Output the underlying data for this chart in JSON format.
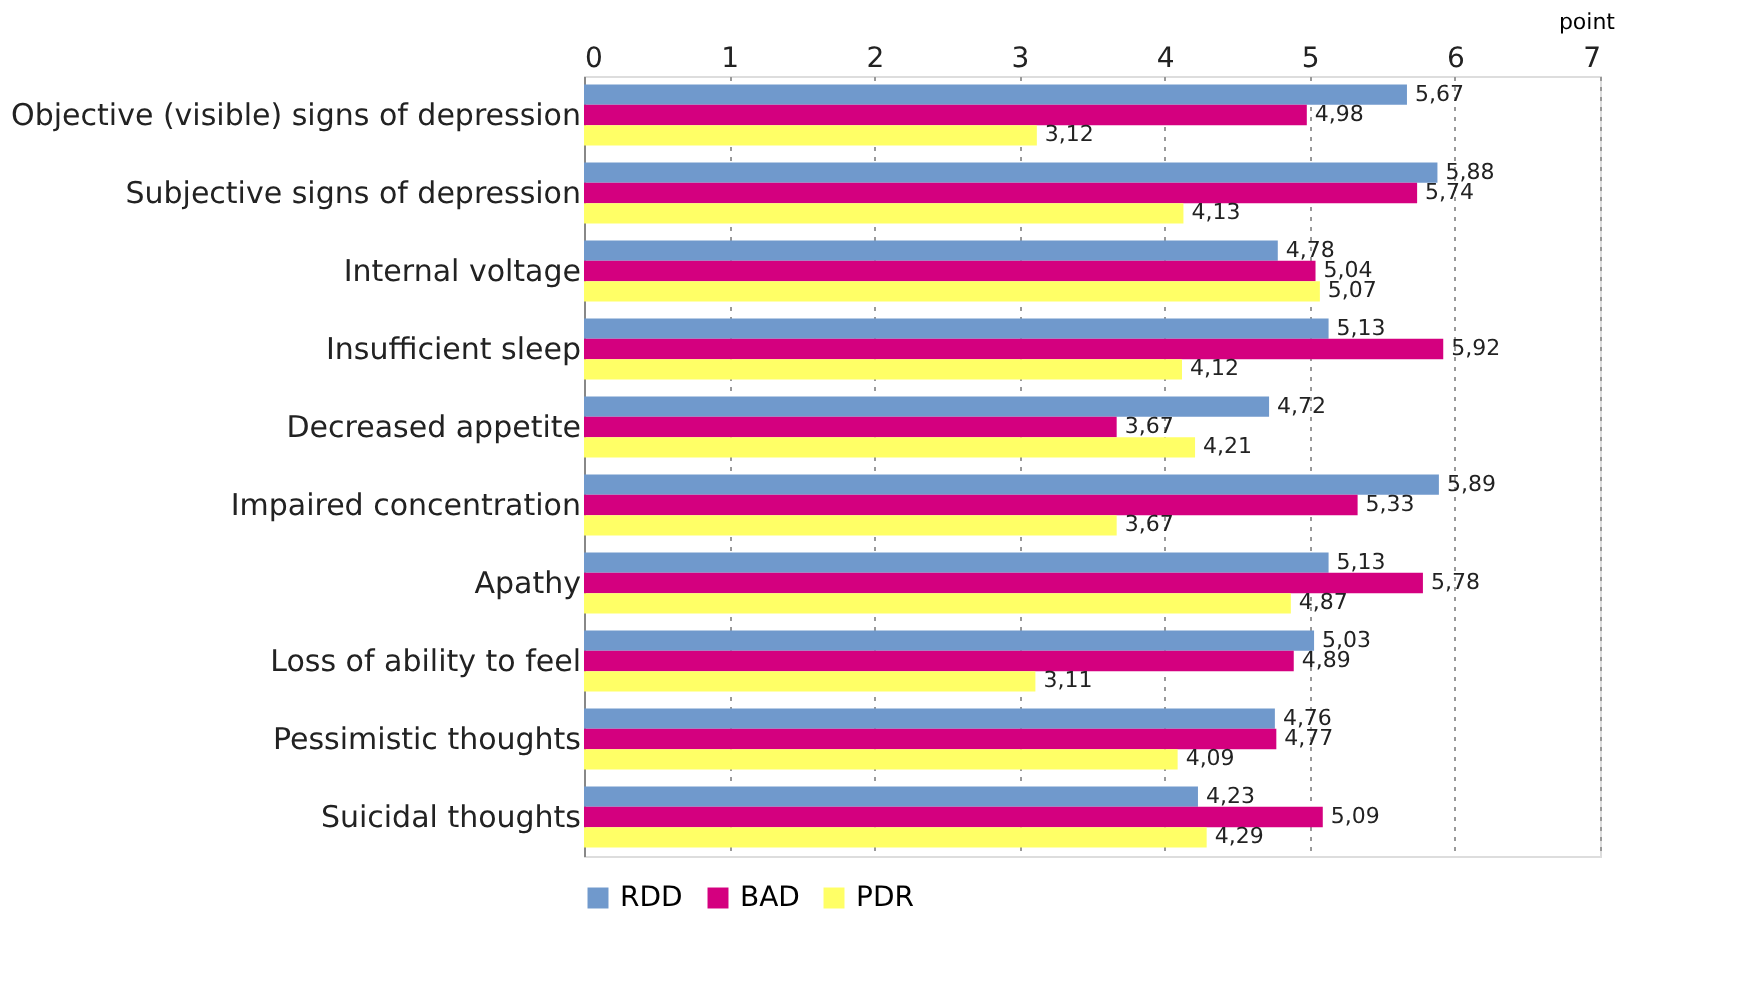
{
  "chart_data": {
    "type": "bar",
    "orientation": "horizontal",
    "xlabel": "point",
    "categories": [
      "Objective (visible) signs of depression",
      "Subjective signs of depression",
      "Internal voltage",
      "Insufficient sleep",
      "Decreased appetite",
      "Impaired concentration",
      "Apathy",
      "Loss of ability to feel",
      "Pessimistic thoughts",
      "Suicidal thoughts"
    ],
    "series": [
      {
        "name": "RDD",
        "color": "#7099cc",
        "values": [
          5.67,
          5.88,
          4.78,
          5.13,
          4.72,
          5.89,
          5.13,
          5.03,
          4.76,
          4.23
        ],
        "value_labels": [
          "5,67",
          "5,88",
          "4,78",
          "5,13",
          "4,72",
          "5,89",
          "5,13",
          "5,03",
          "4,76",
          "4,23"
        ]
      },
      {
        "name": "BAD",
        "color": "#d4007f",
        "values": [
          4.98,
          5.74,
          5.04,
          5.92,
          3.67,
          5.33,
          5.78,
          4.89,
          4.77,
          5.09
        ],
        "value_labels": [
          "4,98",
          "5,74",
          "5,04",
          "5,92",
          "3,67",
          "5,33",
          "5,78",
          "4,89",
          "4,77",
          "5,09"
        ]
      },
      {
        "name": "PDR",
        "color": "#ffff66",
        "values": [
          3.12,
          4.13,
          5.07,
          4.12,
          4.21,
          3.67,
          4.87,
          3.11,
          4.09,
          4.29
        ],
        "value_labels": [
          "3,12",
          "4,13",
          "5,07",
          "4,12",
          "4,21",
          "3,67",
          "4,87",
          "3,11",
          "4,09",
          "4,29"
        ]
      }
    ],
    "xlim": [
      0,
      7
    ],
    "xticks": [
      0,
      1,
      2,
      3,
      4,
      5,
      6,
      7
    ],
    "grid": "x",
    "legend": "bottom"
  }
}
